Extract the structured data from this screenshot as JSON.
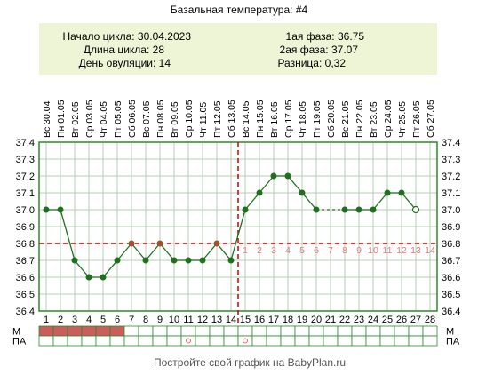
{
  "title": "Базальная температура: #4",
  "info": {
    "cycle_start_label": "Начало цикла: 30.04.2023",
    "cycle_length_label": "Длина цикла: 28",
    "ovulation_day_label": "День овуляции: 14",
    "phase1_label": "1ая фаза: 36.75",
    "phase2_label": "2ая фаза: 37.07",
    "difference_label": "Разница: 0,32"
  },
  "footer": "Постройте свой график на BabyPlan.ru",
  "colors": {
    "info_bg": "#eef5d6",
    "plot_border": "#2b8a2b",
    "grid": "#b5cfb5",
    "line": "#1f6f1f",
    "point": "#1f6f1f",
    "point_special": "#a0522d",
    "coverline": "#cc0000",
    "phase2_numbers": "#d98080",
    "menses_fill": "#cd5c5c",
    "intercourse_mark": "#d96b6b"
  },
  "chart_data": {
    "type": "line",
    "title": "Базальная температура: #4",
    "days": [
      1,
      2,
      3,
      4,
      5,
      6,
      7,
      8,
      9,
      10,
      11,
      12,
      13,
      14,
      15,
      16,
      17,
      18,
      19,
      20,
      21,
      22,
      23,
      24,
      25,
      26,
      27,
      28
    ],
    "weekdays": [
      "Вс",
      "Пн",
      "Вт",
      "Ср",
      "Чт",
      "Пт",
      "Сб",
      "Вс",
      "Пн",
      "Вт",
      "Ср",
      "Чт",
      "Пт",
      "Сб",
      "Вс",
      "Пн",
      "Вт",
      "Ср",
      "Чт",
      "Пт",
      "Сб",
      "Вс",
      "Пн",
      "Вт",
      "Ср",
      "Чт",
      "Пт",
      "Сб"
    ],
    "dates": [
      "30.04",
      "01.05",
      "02.05",
      "03.05",
      "04.05",
      "05.05",
      "06.05",
      "07.05",
      "08.05",
      "09.05",
      "10.05",
      "11.05",
      "12.05",
      "13.05",
      "14.05",
      "15.05",
      "16.05",
      "17.05",
      "18.05",
      "19.05",
      "20.05",
      "21.05",
      "22.05",
      "23.05",
      "24.05",
      "25.05",
      "26.05",
      "27.05"
    ],
    "temperatures": [
      37.0,
      37.0,
      36.7,
      36.6,
      36.6,
      36.7,
      36.8,
      36.7,
      36.8,
      36.7,
      36.7,
      36.7,
      36.8,
      36.7,
      37.0,
      37.1,
      37.2,
      37.2,
      37.1,
      37.0,
      null,
      37.0,
      37.0,
      37.0,
      37.1,
      37.1,
      37.0,
      null
    ],
    "dashed_segments": [
      [
        20,
        22
      ]
    ],
    "special_points": [
      7,
      9,
      13
    ],
    "excluded_points": [
      27
    ],
    "y_ticks": [
      36.4,
      36.5,
      36.6,
      36.7,
      36.8,
      36.9,
      37.0,
      37.1,
      37.2,
      37.3,
      37.4
    ],
    "ylim": [
      36.4,
      37.4
    ],
    "coverline": 36.8,
    "ovulation_day": 14,
    "phase2_day_numbers": [
      1,
      2,
      3,
      4,
      5,
      6,
      7,
      8,
      9,
      10,
      11,
      12,
      13,
      14
    ],
    "rows": [
      {
        "label": "М",
        "marked_days": [
          1,
          2,
          3,
          4,
          5,
          6
        ]
      },
      {
        "label": "ПА",
        "marked_days": [
          11,
          15
        ]
      }
    ],
    "grid": true
  }
}
